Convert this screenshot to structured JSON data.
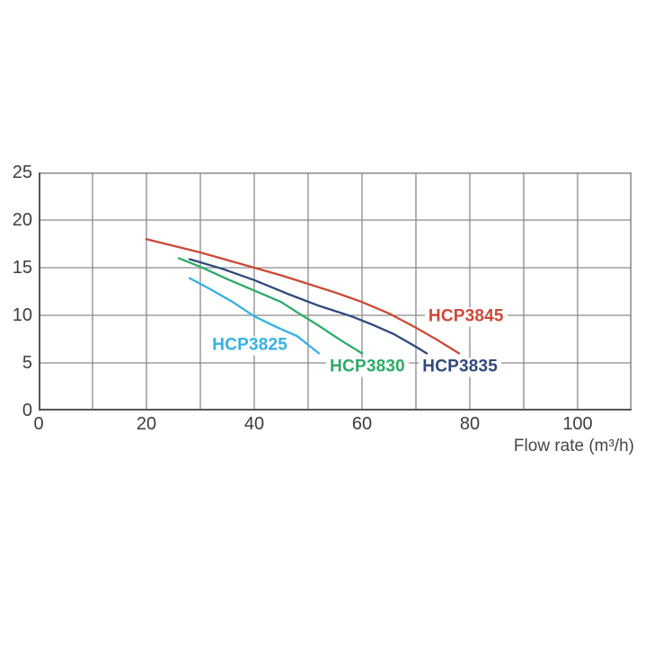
{
  "chart_data": {
    "type": "line",
    "title": "",
    "xlabel": "Flow rate (m³/h)",
    "ylabel": "",
    "xlim": [
      0,
      110
    ],
    "ylim": [
      0,
      25
    ],
    "x_gridline_step": 10,
    "y_gridline_step": 5,
    "x_ticks": [
      0,
      20,
      40,
      60,
      80,
      100
    ],
    "y_ticks": [
      0,
      5,
      10,
      15,
      20,
      25
    ],
    "grid": true,
    "legend_position": "inline-labels-on-plot",
    "colors": {
      "grid": "#8a8a8a",
      "axis": "#555555",
      "tick_text": "#3d3d3d",
      "background": "#ffffff"
    },
    "series": [
      {
        "name": "HCP3825",
        "color": "#35b1e3",
        "points": [
          [
            28,
            13.9
          ],
          [
            32,
            12.7
          ],
          [
            36,
            11.4
          ],
          [
            40,
            9.9
          ],
          [
            44,
            8.8
          ],
          [
            48,
            7.8
          ],
          [
            52,
            6.0
          ]
        ],
        "label_pos": [
          39.2,
          6.8
        ]
      },
      {
        "name": "HCP3830",
        "color": "#2bab66",
        "points": [
          [
            26,
            16.0
          ],
          [
            30,
            15.1
          ],
          [
            35,
            13.8
          ],
          [
            40,
            12.6
          ],
          [
            45,
            11.4
          ],
          [
            48,
            10.3
          ],
          [
            52,
            8.9
          ],
          [
            56,
            7.4
          ],
          [
            60,
            6.0
          ]
        ],
        "label_pos": [
          61.0,
          4.5
        ]
      },
      {
        "name": "HCP3835",
        "color": "#30497c",
        "points": [
          [
            28,
            15.9
          ],
          [
            34,
            14.9
          ],
          [
            40,
            13.7
          ],
          [
            46,
            12.3
          ],
          [
            52,
            11.0
          ],
          [
            58,
            9.9
          ],
          [
            62,
            9.0
          ],
          [
            66,
            8.0
          ],
          [
            70,
            6.7
          ],
          [
            72,
            6.0
          ]
        ],
        "label_pos": [
          78.2,
          4.5
        ]
      },
      {
        "name": "HCP3845",
        "color": "#cc4936",
        "points": [
          [
            20,
            18.0
          ],
          [
            25,
            17.3
          ],
          [
            30,
            16.6
          ],
          [
            35,
            15.8
          ],
          [
            40,
            15.0
          ],
          [
            45,
            14.2
          ],
          [
            50,
            13.3
          ],
          [
            55,
            12.4
          ],
          [
            60,
            11.4
          ],
          [
            65,
            10.2
          ],
          [
            70,
            8.7
          ],
          [
            74,
            7.4
          ],
          [
            78,
            6.0
          ]
        ],
        "label_pos": [
          79.3,
          9.8
        ]
      }
    ]
  }
}
